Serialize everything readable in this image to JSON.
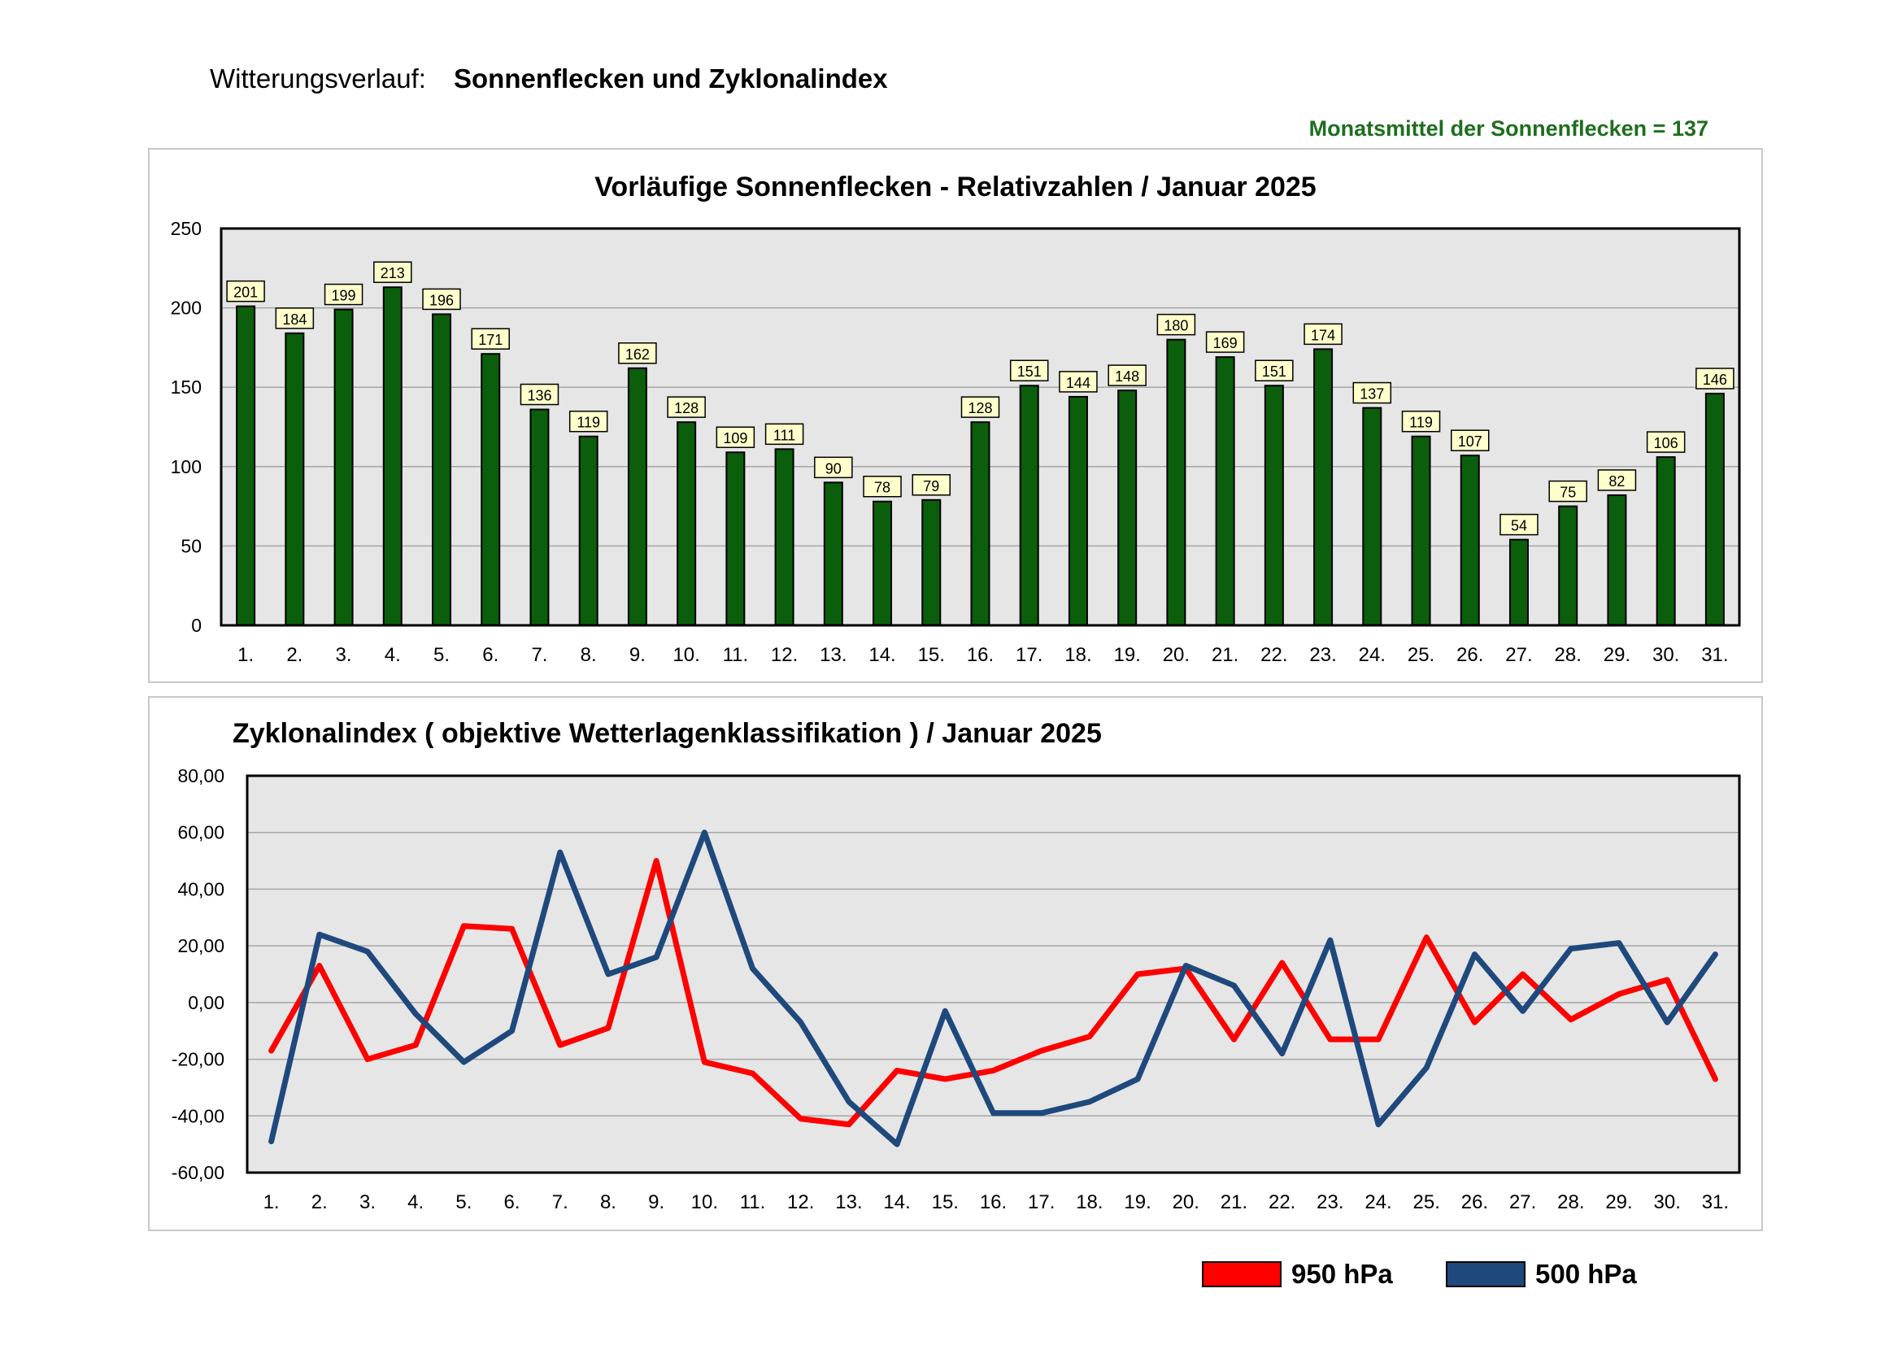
{
  "header": {
    "prefix": "Witterungsverlauf:",
    "title": "Sonnenflecken und Zyklonalindex",
    "monthly_mean": "Monatsmittel der Sonnenflecken = 137"
  },
  "colors": {
    "bar": "#0b5e0b",
    "label_bg": "#ffffcc",
    "plot_bg": "#e6e6e6",
    "line_950": "#ff0000",
    "line_500": "#1f497d",
    "mean_text": "#1e6e1e"
  },
  "chart_data": [
    {
      "type": "bar",
      "title": "Vorläufige Sonnenflecken - Relativzahlen  /   Januar 2025",
      "categories": [
        "1.",
        "2.",
        "3.",
        "4.",
        "5.",
        "6.",
        "7.",
        "8.",
        "9.",
        "10.",
        "11.",
        "12.",
        "13.",
        "14.",
        "15.",
        "16.",
        "17.",
        "18.",
        "19.",
        "20.",
        "21.",
        "22.",
        "23.",
        "24.",
        "25.",
        "26.",
        "27.",
        "28.",
        "29.",
        "30.",
        "31."
      ],
      "values": [
        201,
        184,
        199,
        213,
        196,
        171,
        136,
        119,
        162,
        128,
        109,
        111,
        90,
        78,
        79,
        128,
        151,
        144,
        148,
        180,
        169,
        151,
        174,
        137,
        119,
        107,
        54,
        75,
        82,
        106,
        146
      ],
      "ylim": [
        0,
        250
      ],
      "yticks": [
        0,
        50,
        100,
        150,
        200,
        250
      ],
      "ytick_labels": [
        "0",
        "50",
        "100",
        "150",
        "200",
        "250"
      ],
      "grid": true,
      "data_labels": true
    },
    {
      "type": "line",
      "title": "Zyklonalindex  ( objektive Wetterlagenklassifikation )  /  Januar 2025",
      "categories": [
        "1.",
        "2.",
        "3.",
        "4.",
        "5.",
        "6.",
        "7.",
        "8.",
        "9.",
        "10.",
        "11.",
        "12.",
        "13.",
        "14.",
        "15.",
        "16.",
        "17.",
        "18.",
        "19.",
        "20.",
        "21.",
        "22.",
        "23.",
        "24.",
        "25.",
        "26.",
        "27.",
        "28.",
        "29.",
        "30.",
        "31."
      ],
      "series": [
        {
          "name": "950 hPa",
          "values": [
            -17,
            13,
            -20,
            -15,
            27,
            26,
            -15,
            -9,
            50,
            -21,
            -25,
            -41,
            -43,
            -24,
            -27,
            -24,
            -17,
            -12,
            10,
            12,
            -13,
            14,
            -13,
            -13,
            23,
            -7,
            10,
            -6,
            3,
            8,
            -27
          ]
        },
        {
          "name": "500 hPa",
          "values": [
            -49,
            24,
            18,
            -4,
            -21,
            -10,
            53,
            10,
            16,
            60,
            12,
            -7,
            -35,
            -50,
            -3,
            -39,
            -39,
            -35,
            -27,
            13,
            6,
            -18,
            22,
            -43,
            -23,
            17,
            -3,
            19,
            21,
            -7,
            17
          ]
        }
      ],
      "ylim": [
        -60,
        80
      ],
      "yticks": [
        -60,
        -40,
        -20,
        0,
        20,
        40,
        60,
        80
      ],
      "ytick_labels": [
        "-60,00",
        "-40,00",
        "-20,00",
        "0,00",
        "20,00",
        "40,00",
        "60,00",
        "80,00"
      ],
      "grid": true,
      "legend": "bottom-right"
    }
  ],
  "legend": {
    "item_950": "950 hPa",
    "item_500": "500 hPa"
  }
}
